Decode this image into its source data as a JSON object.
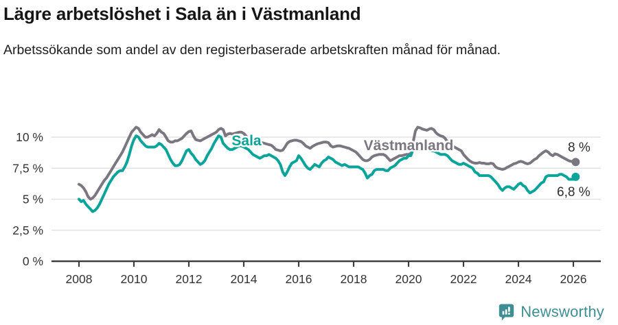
{
  "header": {
    "title": "Lägre arbetslöshet i Sala än i Västmanland",
    "subtitle": "Arbetssökande som andel av den registerbaserade arbetskraften månad för månad."
  },
  "footer": {
    "brand": "Newsworthy",
    "brand_color": "#3e8e94"
  },
  "colors": {
    "sala": "#0ba49a",
    "vastmanland": "#7b7780",
    "axis": "#3d3d3d",
    "grid": "#dddddd",
    "tick_text": "#333333",
    "end_label_text": "#2d2d2d"
  },
  "chart_data": {
    "type": "line",
    "title": "Lägre arbetslöshet i Sala än i Västmanland",
    "subtitle": "Arbetssökande som andel av den registerbaserade arbetskraften månad för månad.",
    "unit": "%",
    "frequency": "monthly",
    "x_start": "2008-01",
    "x_end": "2026-02",
    "xlabel": "",
    "ylabel": "",
    "ylim": [
      0,
      11.5
    ],
    "grid": "horizontal",
    "legend_position": "inline-labels",
    "x_ticks": [
      2008,
      2010,
      2012,
      2014,
      2016,
      2018,
      2020,
      2022,
      2024,
      2026
    ],
    "y_ticks": [
      0,
      2.5,
      5,
      7.5,
      10
    ],
    "y_tick_labels": [
      "0 %",
      "2,5 %",
      "5 %",
      "7,5 %",
      "10 %"
    ],
    "series": [
      {
        "name": "Västmanland",
        "color": "#7b7780",
        "end_label": "8 %",
        "end_value": 8.0,
        "values": [
          6.2,
          6.1,
          5.9,
          5.6,
          5.2,
          5.0,
          5.1,
          5.3,
          5.6,
          5.9,
          6.2,
          6.5,
          6.7,
          7.0,
          7.3,
          7.6,
          7.9,
          8.2,
          8.5,
          8.8,
          9.2,
          9.6,
          10.0,
          10.4,
          10.6,
          10.8,
          10.7,
          10.4,
          10.2,
          10.0,
          10.0,
          10.1,
          10.2,
          10.1,
          10.3,
          10.6,
          10.4,
          10.3,
          10.0,
          9.7,
          9.6,
          9.6,
          9.7,
          9.7,
          9.8,
          9.9,
          10.1,
          10.3,
          10.45,
          10.5,
          10.1,
          9.8,
          9.75,
          9.7,
          9.8,
          9.9,
          10.0,
          10.1,
          10.2,
          10.3,
          10.4,
          10.6,
          10.7,
          10.6,
          10.1,
          10.25,
          10.3,
          10.25,
          10.3,
          10.35,
          10.4,
          10.4,
          10.3,
          10.1,
          9.8,
          9.65,
          9.6,
          9.55,
          9.55,
          9.5,
          9.55,
          9.5,
          9.45,
          9.4,
          9.35,
          9.2,
          9.0,
          8.95,
          8.9,
          8.95,
          9.2,
          9.5,
          9.65,
          9.7,
          9.75,
          9.75,
          9.7,
          9.65,
          9.5,
          9.3,
          9.2,
          9.1,
          9.25,
          9.35,
          9.45,
          9.5,
          9.55,
          9.6,
          9.6,
          9.55,
          9.3,
          9.2,
          9.25,
          9.3,
          9.3,
          9.25,
          9.2,
          9.15,
          9.1,
          9.0,
          8.9,
          8.8,
          8.6,
          8.4,
          8.2,
          8.1,
          8.1,
          8.2,
          8.4,
          8.5,
          8.55,
          8.6,
          8.6,
          8.6,
          8.5,
          8.3,
          8.1,
          8.2,
          8.3,
          8.4,
          8.5,
          8.5,
          8.55,
          8.6,
          8.6,
          8.7,
          9.6,
          10.5,
          10.8,
          10.75,
          10.65,
          10.6,
          10.55,
          10.65,
          10.7,
          10.6,
          10.35,
          10.2,
          10.1,
          10.05,
          9.9,
          9.6,
          9.45,
          9.3,
          9.2,
          9.1,
          9.0,
          8.9,
          8.6,
          8.4,
          8.2,
          8.05,
          7.95,
          7.9,
          7.9,
          7.95,
          7.9,
          7.9,
          7.85,
          7.85,
          7.9,
          7.85,
          7.6,
          7.5,
          7.45,
          7.4,
          7.45,
          7.55,
          7.65,
          7.75,
          7.85,
          7.9,
          8.0,
          8.05,
          8.0,
          7.9,
          7.85,
          7.9,
          8.05,
          8.2,
          8.3,
          8.5,
          8.65,
          8.8,
          8.9,
          8.8,
          8.6,
          8.5,
          8.65,
          8.6,
          8.5,
          8.4,
          8.3,
          8.2,
          8.1,
          8.05,
          8.0,
          8.0
        ]
      },
      {
        "name": "Sala",
        "color": "#0ba49a",
        "end_label": "6,8 %",
        "end_value": 6.8,
        "values": [
          5.0,
          4.8,
          4.9,
          4.6,
          4.4,
          4.2,
          4.0,
          4.1,
          4.3,
          4.6,
          5.0,
          5.4,
          5.8,
          6.2,
          6.5,
          6.8,
          7.0,
          7.2,
          7.3,
          7.3,
          7.6,
          8.0,
          8.6,
          9.3,
          9.8,
          10.1,
          10.0,
          9.7,
          9.5,
          9.3,
          9.2,
          9.2,
          9.2,
          9.2,
          9.3,
          9.5,
          9.4,
          9.2,
          9.0,
          8.6,
          8.2,
          7.9,
          7.7,
          7.7,
          7.8,
          8.1,
          8.5,
          8.9,
          9.0,
          8.7,
          8.5,
          8.2,
          8.0,
          7.8,
          7.9,
          8.1,
          8.5,
          8.8,
          9.1,
          9.5,
          9.8,
          10.1,
          10.0,
          9.5,
          9.3,
          9.1,
          9.0,
          9.0,
          9.1,
          9.2,
          9.3,
          9.3,
          9.2,
          9.1,
          9.0,
          8.8,
          8.6,
          8.5,
          8.4,
          8.3,
          8.4,
          8.5,
          8.5,
          8.6,
          8.5,
          8.4,
          8.3,
          8.1,
          7.8,
          7.2,
          6.9,
          7.2,
          7.6,
          7.9,
          8.0,
          8.1,
          8.5,
          8.3,
          8.0,
          7.7,
          7.5,
          7.4,
          7.6,
          7.8,
          7.7,
          7.6,
          7.9,
          8.1,
          8.2,
          8.4,
          8.3,
          8.2,
          8.0,
          7.9,
          7.8,
          7.7,
          7.8,
          7.7,
          7.6,
          7.6,
          7.6,
          7.6,
          7.6,
          7.5,
          7.4,
          7.1,
          6.7,
          6.9,
          7.0,
          7.3,
          7.4,
          7.4,
          7.4,
          7.4,
          7.3,
          7.3,
          7.5,
          7.6,
          7.7,
          7.9,
          8.1,
          8.2,
          8.3,
          8.3,
          8.5,
          8.5,
          9.0,
          9.3,
          9.4,
          9.3,
          9.2,
          9.1,
          9.0,
          9.0,
          8.9,
          8.9,
          8.8,
          8.7,
          8.6,
          8.6,
          8.6,
          8.5,
          8.3,
          8.1,
          8.0,
          7.9,
          7.8,
          7.8,
          7.9,
          7.8,
          7.7,
          7.6,
          7.5,
          7.2,
          7.1,
          6.9,
          6.9,
          6.9,
          6.9,
          6.9,
          6.8,
          6.6,
          6.4,
          6.2,
          5.9,
          5.7,
          5.9,
          6.0,
          6.0,
          5.9,
          5.8,
          6.0,
          6.2,
          6.3,
          6.1,
          6.0,
          5.7,
          5.5,
          5.6,
          5.7,
          5.9,
          6.1,
          6.3,
          6.4,
          6.8,
          6.9,
          6.9,
          6.9,
          6.9,
          6.9,
          7.0,
          7.0,
          6.9,
          6.8,
          6.6,
          6.6,
          6.6,
          6.8
        ]
      }
    ]
  }
}
